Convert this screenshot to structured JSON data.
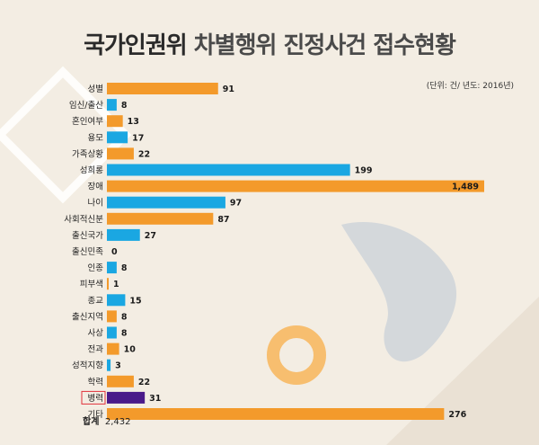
{
  "title_part1": "국가인권위",
  "title_part2": "차별행위 진정사건 접수현황",
  "unit_note": "(단위: 건/ 년도: 2016년)",
  "total_label": "합계",
  "total_value": "2,432",
  "colors": {
    "orange": "#f39a2b",
    "blue": "#1aa7e2",
    "purple": "#4a1a8a",
    "highlight_box": "#e0303a"
  },
  "chart_data": {
    "type": "bar",
    "orientation": "horizontal",
    "categories": [
      "성별",
      "임신/출산",
      "혼인여부",
      "용모",
      "가족상황",
      "성희롱",
      "장애",
      "나이",
      "사회적신분",
      "출신국가",
      "출신민족",
      "인종",
      "피부색",
      "종교",
      "출신지역",
      "사상",
      "전과",
      "성적지향",
      "학력",
      "병력",
      "기타"
    ],
    "values": [
      91,
      8,
      13,
      17,
      22,
      199,
      1489,
      97,
      87,
      27,
      0,
      8,
      1,
      15,
      8,
      8,
      10,
      3,
      22,
      31,
      276
    ],
    "value_labels": [
      "91",
      "8",
      "13",
      "17",
      "22",
      "199",
      "1,489",
      "97",
      "87",
      "27",
      "0",
      "8",
      "1",
      "15",
      "8",
      "8",
      "10",
      "3",
      "22",
      "31",
      "276"
    ],
    "bar_colors": [
      "orange",
      "blue",
      "orange",
      "blue",
      "orange",
      "blue",
      "orange",
      "blue",
      "orange",
      "blue",
      "orange",
      "blue",
      "orange",
      "blue",
      "orange",
      "blue",
      "orange",
      "blue",
      "orange",
      "purple",
      "orange"
    ],
    "highlighted_category": "병력",
    "axis_break": true,
    "grid": false,
    "legend": "none"
  }
}
